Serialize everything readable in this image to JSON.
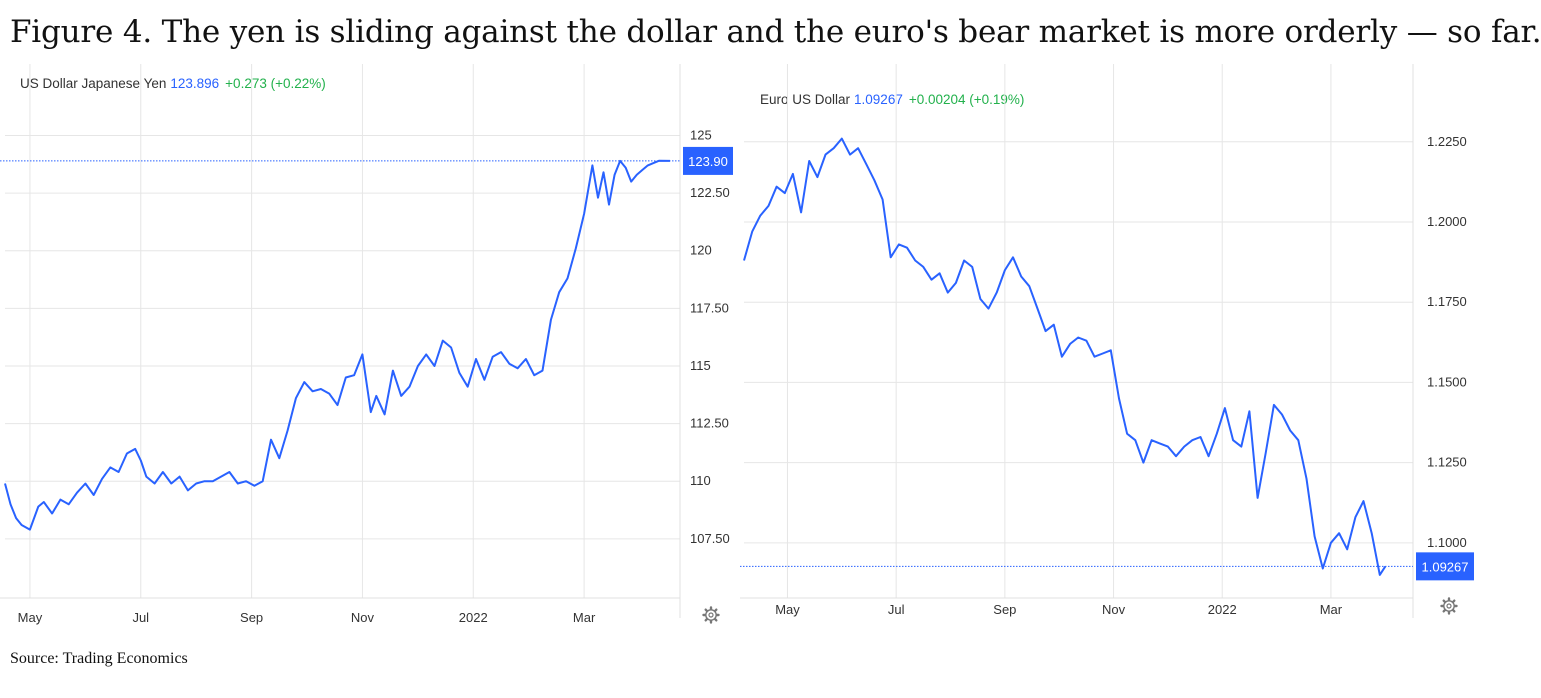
{
  "figure": {
    "title": "Figure 4. The yen is sliding against the dollar and the euro's bear market is more orderly — so far.",
    "source": "Source: Trading Economics"
  },
  "colors": {
    "line": "#2962ff",
    "change": "#22b14c",
    "grid": "#e6e6e6"
  },
  "icons": {
    "settings": "gear-icon"
  },
  "chart_data": [
    {
      "type": "line",
      "header": {
        "name": "US Dollar Japanese Yen",
        "price": "123.896",
        "change": "+0.273 (+0.22%)"
      },
      "last_value_label": "123.90",
      "last_value": 123.896,
      "x_ticks": [
        "May",
        "Jul",
        "Sep",
        "Nov",
        "2022",
        "Mar"
      ],
      "x_tick_pos": [
        1.3,
        3.3,
        5.3,
        7.3,
        9.3,
        11.3
      ],
      "y_ticks": [
        "107.50",
        "110",
        "112.50",
        "115",
        "117.50",
        "120",
        "122.50",
        "125"
      ],
      "y_tick_values": [
        107.5,
        110,
        112.5,
        115,
        117.5,
        120,
        122.5,
        125
      ],
      "xlim": [
        0.85,
        12.85
      ],
      "ylim": [
        105.28,
        127.58
      ],
      "grid": true,
      "series": [
        {
          "x": [
            0.85,
            0.95,
            1.05,
            1.15,
            1.3,
            1.45,
            1.55,
            1.7,
            1.85,
            2.0,
            2.15,
            2.3,
            2.45,
            2.6,
            2.75,
            2.9,
            3.05,
            3.2,
            3.3,
            3.4,
            3.55,
            3.7,
            3.85,
            4.0,
            4.15,
            4.3,
            4.45,
            4.6,
            4.75,
            4.9,
            5.05,
            5.2,
            5.35,
            5.5,
            5.65,
            5.8,
            5.95,
            6.1,
            6.25,
            6.4,
            6.55,
            6.7,
            6.85,
            7.0,
            7.15,
            7.3,
            7.45,
            7.55,
            7.7,
            7.85,
            8.0,
            8.15,
            8.3,
            8.45,
            8.6,
            8.75,
            8.9,
            9.05,
            9.2,
            9.35,
            9.5,
            9.65,
            9.8,
            9.95,
            10.1,
            10.25,
            10.4,
            10.55,
            10.7,
            10.85,
            11.0,
            11.15,
            11.3,
            11.45,
            11.55,
            11.65,
            11.75,
            11.85,
            11.95,
            12.05,
            12.15,
            12.25,
            12.35,
            12.45,
            12.55,
            12.65,
            12.85
          ],
          "values": [
            109.9,
            109.0,
            108.4,
            108.1,
            107.9,
            108.9,
            109.1,
            108.6,
            109.2,
            109.0,
            109.5,
            109.9,
            109.4,
            110.1,
            110.6,
            110.4,
            111.2,
            111.4,
            110.9,
            110.2,
            109.9,
            110.4,
            109.9,
            110.2,
            109.6,
            109.9,
            110.0,
            110.0,
            110.2,
            110.4,
            109.9,
            110.0,
            109.8,
            110.0,
            111.8,
            111.0,
            112.2,
            113.6,
            114.3,
            113.9,
            114.0,
            113.8,
            113.3,
            114.5,
            114.6,
            115.5,
            113.0,
            113.7,
            112.9,
            114.8,
            113.7,
            114.1,
            115.0,
            115.5,
            115.0,
            116.1,
            115.8,
            114.7,
            114.1,
            115.3,
            114.4,
            115.4,
            115.6,
            115.1,
            114.9,
            115.3,
            114.6,
            114.8,
            117.0,
            118.2,
            118.8,
            120.1,
            121.6,
            123.7,
            122.3,
            123.4,
            122.0,
            123.3,
            123.896,
            123.6,
            123.0,
            123.3,
            123.5,
            123.7,
            123.8,
            123.9,
            123.896
          ]
        }
      ]
    },
    {
      "type": "line",
      "header": {
        "name": "Euro US Dollar",
        "price": "1.09267",
        "change": "+0.00204 (+0.19%)"
      },
      "last_value_label": "1.09267",
      "last_value": 1.09267,
      "x_ticks": [
        "May",
        "Jul",
        "Sep",
        "Nov",
        "2022",
        "Mar"
      ],
      "x_tick_pos": [
        1.3,
        3.3,
        5.3,
        7.3,
        9.3,
        11.3
      ],
      "y_ticks": [
        "1.1000",
        "1.1250",
        "1.1500",
        "1.1750",
        "1.2000",
        "1.2250"
      ],
      "y_tick_values": [
        1.1,
        1.125,
        1.15,
        1.175,
        1.2,
        1.225
      ],
      "xlim": [
        0.5,
        12.7
      ],
      "ylim": [
        1.0853,
        1.2455
      ],
      "grid": true,
      "series": [
        {
          "x": [
            0.5,
            0.65,
            0.8,
            0.95,
            1.1,
            1.25,
            1.4,
            1.55,
            1.7,
            1.85,
            2.0,
            2.15,
            2.3,
            2.45,
            2.6,
            2.75,
            2.9,
            3.05,
            3.2,
            3.35,
            3.5,
            3.65,
            3.8,
            3.95,
            4.1,
            4.25,
            4.4,
            4.55,
            4.7,
            4.85,
            5.0,
            5.15,
            5.3,
            5.45,
            5.6,
            5.75,
            5.9,
            6.05,
            6.2,
            6.35,
            6.5,
            6.65,
            6.8,
            6.95,
            7.1,
            7.25,
            7.4,
            7.55,
            7.7,
            7.85,
            8.0,
            8.15,
            8.3,
            8.45,
            8.6,
            8.75,
            8.9,
            9.05,
            9.2,
            9.35,
            9.5,
            9.65,
            9.8,
            9.95,
            10.1,
            10.25,
            10.4,
            10.55,
            10.7,
            10.85,
            11.0,
            11.15,
            11.3,
            11.45,
            11.6,
            11.75,
            11.9,
            12.05,
            12.2,
            12.3
          ],
          "values": [
            1.188,
            1.197,
            1.202,
            1.205,
            1.211,
            1.209,
            1.215,
            1.203,
            1.219,
            1.214,
            1.221,
            1.223,
            1.226,
            1.221,
            1.223,
            1.218,
            1.213,
            1.207,
            1.189,
            1.193,
            1.192,
            1.188,
            1.186,
            1.182,
            1.184,
            1.178,
            1.181,
            1.188,
            1.186,
            1.176,
            1.173,
            1.178,
            1.185,
            1.189,
            1.183,
            1.18,
            1.173,
            1.166,
            1.168,
            1.158,
            1.162,
            1.164,
            1.163,
            1.158,
            1.159,
            1.16,
            1.145,
            1.134,
            1.132,
            1.125,
            1.132,
            1.131,
            1.13,
            1.127,
            1.13,
            1.132,
            1.133,
            1.127,
            1.134,
            1.142,
            1.132,
            1.13,
            1.141,
            1.114,
            1.128,
            1.143,
            1.14,
            1.135,
            1.132,
            1.12,
            1.102,
            1.092,
            1.1,
            1.103,
            1.098,
            1.108,
            1.113,
            1.103,
            1.09,
            1.09267
          ]
        }
      ]
    }
  ]
}
